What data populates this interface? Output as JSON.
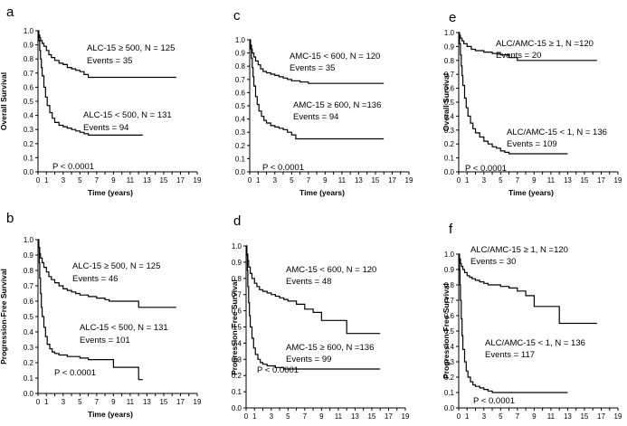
{
  "chart_data": [
    {
      "type": "line",
      "panel_letter": "a",
      "ylabel": "Overall Survival",
      "xlabel": "Time (years)",
      "xlim": [
        0,
        19
      ],
      "ylim": [
        0,
        1
      ],
      "xticks": [
        "0",
        "1",
        "3",
        "5",
        "7",
        "9",
        "11",
        "13",
        "15",
        "17",
        "19"
      ],
      "yticks": [
        "0.0",
        "0.1",
        "0.2",
        "0.3",
        "0.4",
        "0.5",
        "0.6",
        "0.7",
        "0.8",
        "0.9",
        "1.0"
      ],
      "pvalue": "P < 0.0001",
      "annotations": [
        {
          "line1": "ALC-15 ≥ 500, N = 125",
          "line2": "Events = 35"
        },
        {
          "line1": "ALC-15 < 500, N = 131",
          "line2": "Events = 94"
        }
      ],
      "series": [
        {
          "x": [
            0,
            0.1,
            0.2,
            0.3,
            0.5,
            0.7,
            1,
            1.3,
            1.6,
            2,
            2.5,
            3,
            3.5,
            4,
            4.5,
            5,
            5.5,
            6,
            6.5,
            7,
            9,
            16.5
          ],
          "y": [
            1,
            0.97,
            0.95,
            0.93,
            0.91,
            0.89,
            0.86,
            0.83,
            0.81,
            0.79,
            0.77,
            0.76,
            0.74,
            0.73,
            0.72,
            0.71,
            0.69,
            0.67,
            0.67,
            0.67,
            0.67,
            0.67
          ]
        },
        {
          "x": [
            0,
            0.1,
            0.2,
            0.3,
            0.4,
            0.5,
            0.7,
            0.9,
            1.1,
            1.4,
            1.7,
            2,
            2.5,
            3,
            3.5,
            4,
            4.5,
            5,
            5.5,
            6,
            6.5,
            9,
            10,
            11,
            12.5
          ],
          "y": [
            1,
            0.93,
            0.86,
            0.8,
            0.74,
            0.68,
            0.6,
            0.53,
            0.47,
            0.42,
            0.38,
            0.35,
            0.33,
            0.32,
            0.31,
            0.3,
            0.29,
            0.28,
            0.27,
            0.26,
            0.26,
            0.26,
            0.26,
            0.26,
            0.26
          ]
        }
      ]
    },
    {
      "type": "line",
      "panel_letter": "b",
      "ylabel": "Progression-Free Survival",
      "xlabel": "Time (years)",
      "xlim": [
        0,
        19
      ],
      "ylim": [
        0,
        1
      ],
      "xticks": [
        "0",
        "1",
        "3",
        "5",
        "7",
        "9",
        "11",
        "13",
        "15",
        "17",
        "19"
      ],
      "yticks": [
        "0.0",
        "0.1",
        "0.2",
        "0.3",
        "0.4",
        "0.5",
        "0.6",
        "0.7",
        "0.8",
        "0.9",
        "1.0"
      ],
      "pvalue": "P < 0.0001",
      "annotations": [
        {
          "line1": "ALC-15 ≥ 500, N = 125",
          "line2": "Events = 46"
        },
        {
          "line1": "ALC-15 < 500, N = 131",
          "line2": "Events = 101"
        }
      ],
      "series": [
        {
          "x": [
            0,
            0.1,
            0.2,
            0.3,
            0.5,
            0.7,
            1,
            1.3,
            1.6,
            2,
            2.5,
            3,
            3.5,
            4,
            4.5,
            5,
            6,
            7,
            8,
            8.5,
            9,
            12,
            16.5
          ],
          "y": [
            1,
            0.95,
            0.91,
            0.88,
            0.85,
            0.82,
            0.79,
            0.76,
            0.74,
            0.72,
            0.7,
            0.68,
            0.67,
            0.66,
            0.65,
            0.64,
            0.63,
            0.62,
            0.61,
            0.6,
            0.6,
            0.56,
            0.56
          ]
        },
        {
          "x": [
            0,
            0.1,
            0.15,
            0.2,
            0.3,
            0.4,
            0.5,
            0.7,
            0.9,
            1.1,
            1.4,
            1.7,
            2,
            2.5,
            3,
            3.5,
            4,
            5,
            6,
            7,
            8,
            9,
            10,
            11,
            12,
            12.5
          ],
          "y": [
            1,
            0.95,
            0.85,
            0.75,
            0.65,
            0.56,
            0.5,
            0.43,
            0.37,
            0.32,
            0.29,
            0.27,
            0.26,
            0.25,
            0.25,
            0.24,
            0.24,
            0.23,
            0.22,
            0.22,
            0.22,
            0.17,
            0.17,
            0.17,
            0.09,
            0.09
          ]
        }
      ]
    },
    {
      "type": "line",
      "panel_letter": "c",
      "ylabel": "",
      "xlabel": "Time (years)",
      "xlim": [
        0,
        19
      ],
      "ylim": [
        0,
        1
      ],
      "xticks": [
        "0",
        "1",
        "3",
        "5",
        "7",
        "9",
        "11",
        "13",
        "15",
        "17",
        "19"
      ],
      "yticks": [
        "0.0",
        "0.1",
        "0.2",
        "0.3",
        "0.4",
        "0.5",
        "0.6",
        "0.7",
        "0.8",
        "0.9",
        "1.0"
      ],
      "pvalue": "P < 0.0001",
      "annotations": [
        {
          "line1": "AMC-15 < 600, N = 120",
          "line2": "Events = 35"
        },
        {
          "line1": "AMC-15 ≥ 600, N =136",
          "line2": "Events = 94"
        }
      ],
      "series": [
        {
          "x": [
            0,
            0.1,
            0.2,
            0.3,
            0.5,
            0.7,
            1,
            1.3,
            1.6,
            2,
            2.5,
            3,
            3.5,
            4,
            4.5,
            5,
            6,
            7,
            9,
            16
          ],
          "y": [
            1,
            0.96,
            0.93,
            0.9,
            0.87,
            0.84,
            0.81,
            0.78,
            0.76,
            0.75,
            0.74,
            0.73,
            0.72,
            0.71,
            0.7,
            0.69,
            0.68,
            0.67,
            0.67,
            0.67
          ]
        },
        {
          "x": [
            0,
            0.1,
            0.2,
            0.3,
            0.4,
            0.5,
            0.7,
            0.9,
            1.1,
            1.4,
            1.7,
            2,
            2.5,
            3,
            3.5,
            4,
            4.5,
            5,
            5.5,
            6,
            9,
            16
          ],
          "y": [
            1,
            0.93,
            0.86,
            0.79,
            0.72,
            0.65,
            0.57,
            0.51,
            0.46,
            0.42,
            0.39,
            0.37,
            0.35,
            0.34,
            0.33,
            0.32,
            0.3,
            0.28,
            0.25,
            0.25,
            0.25,
            0.25
          ]
        }
      ]
    },
    {
      "type": "line",
      "panel_letter": "d",
      "ylabel": "Progression-Free Survival",
      "xlabel": "Time (years)",
      "xlim": [
        0,
        19
      ],
      "ylim": [
        0,
        1
      ],
      "xticks": [
        "0",
        "1",
        "3",
        "5",
        "7",
        "9",
        "11",
        "13",
        "15",
        "17",
        "19"
      ],
      "yticks": [
        "0.0",
        "0.1",
        "0.2",
        "0.3",
        "0.4",
        "0.5",
        "0.6",
        "0.7",
        "0.8",
        "0.9",
        "1.0"
      ],
      "pvalue": "P < 0.0001",
      "annotations": [
        {
          "line1": "AMC-15 < 600, N = 120",
          "line2": "Events = 48"
        },
        {
          "line1": "AMC-15 ≥ 600, N =136",
          "line2": "Events = 99"
        }
      ],
      "series": [
        {
          "x": [
            0,
            0.1,
            0.2,
            0.3,
            0.5,
            0.7,
            1,
            1.3,
            1.6,
            2,
            2.5,
            3,
            3.5,
            4,
            4.5,
            5,
            6,
            7,
            8,
            9,
            10,
            11,
            12,
            16
          ],
          "y": [
            1,
            0.95,
            0.91,
            0.87,
            0.83,
            0.8,
            0.77,
            0.75,
            0.73,
            0.72,
            0.71,
            0.7,
            0.69,
            0.68,
            0.67,
            0.66,
            0.64,
            0.61,
            0.59,
            0.54,
            0.54,
            0.54,
            0.46,
            0.46
          ]
        },
        {
          "x": [
            0,
            0.1,
            0.15,
            0.2,
            0.3,
            0.4,
            0.5,
            0.7,
            0.9,
            1.1,
            1.4,
            1.7,
            2,
            2.5,
            3,
            3.5,
            4,
            4.5,
            5,
            6,
            9,
            16
          ],
          "y": [
            1,
            0.94,
            0.85,
            0.75,
            0.65,
            0.57,
            0.5,
            0.43,
            0.37,
            0.33,
            0.3,
            0.28,
            0.27,
            0.26,
            0.26,
            0.25,
            0.25,
            0.24,
            0.24,
            0.24,
            0.24,
            0.24
          ]
        }
      ]
    },
    {
      "type": "line",
      "panel_letter": "e",
      "ylabel": "Overall Survival",
      "xlabel": "Time (years)",
      "xlim": [
        0,
        19
      ],
      "ylim": [
        0,
        1
      ],
      "xticks": [
        "0",
        "1",
        "3",
        "5",
        "7",
        "9",
        "11",
        "13",
        "15",
        "17",
        "19"
      ],
      "yticks": [
        "0.0",
        "0.1",
        "0.2",
        "0.3",
        "0.4",
        "0.5",
        "0.6",
        "0.7",
        "0.8",
        "0.9",
        "1.0"
      ],
      "pvalue": "P < 0.0001",
      "annotations": [
        {
          "line1": "ALC/AMC-15 ≥ 1, N =120",
          "line2": "Events = 20"
        },
        {
          "line1": "ALC/AMC-15 < 1, N = 136",
          "line2": "Events = 109"
        }
      ],
      "series": [
        {
          "x": [
            0,
            0.1,
            0.2,
            0.4,
            0.6,
            1,
            1.5,
            2,
            3,
            4,
            5,
            6,
            7,
            9,
            16.5
          ],
          "y": [
            1,
            0.98,
            0.96,
            0.94,
            0.92,
            0.9,
            0.88,
            0.87,
            0.86,
            0.85,
            0.84,
            0.82,
            0.8,
            0.8,
            0.8
          ]
        },
        {
          "x": [
            0,
            0.1,
            0.2,
            0.3,
            0.4,
            0.5,
            0.7,
            0.9,
            1.1,
            1.4,
            1.7,
            2,
            2.5,
            3,
            3.5,
            4,
            4.5,
            5,
            5.5,
            6,
            9,
            13
          ],
          "y": [
            1,
            0.92,
            0.84,
            0.76,
            0.69,
            0.62,
            0.53,
            0.46,
            0.4,
            0.35,
            0.31,
            0.28,
            0.25,
            0.22,
            0.2,
            0.18,
            0.17,
            0.15,
            0.14,
            0.13,
            0.13,
            0.13
          ]
        }
      ]
    },
    {
      "type": "line",
      "panel_letter": "f",
      "ylabel": "Progression-Free Survival",
      "xlabel": "Time (years)",
      "xlim": [
        0,
        19
      ],
      "ylim": [
        0,
        1
      ],
      "xticks": [
        "0",
        "1",
        "3",
        "5",
        "7",
        "9",
        "11",
        "13",
        "15",
        "17",
        "19"
      ],
      "yticks": [
        "0.0",
        "0.1",
        "0.2",
        "0.3",
        "0.4",
        "0.5",
        "0.6",
        "0.7",
        "0.8",
        "0.9",
        "1.0"
      ],
      "pvalue": "P < 0.0001",
      "annotations": [
        {
          "line1": "ALC/AMC-15  ≥ 1, N =120",
          "line2": "Events = 30"
        },
        {
          "line1": "ALC/AMC-15 < 1, N = 136",
          "line2": "Events = 117"
        }
      ],
      "series": [
        {
          "x": [
            0,
            0.1,
            0.2,
            0.3,
            0.5,
            0.7,
            1,
            1.3,
            1.6,
            2,
            2.5,
            3,
            3.5,
            4,
            5,
            6,
            7,
            8,
            9,
            12,
            16.5
          ],
          "y": [
            1,
            0.97,
            0.94,
            0.92,
            0.9,
            0.88,
            0.86,
            0.85,
            0.84,
            0.83,
            0.82,
            0.81,
            0.8,
            0.8,
            0.79,
            0.78,
            0.76,
            0.73,
            0.66,
            0.55,
            0.55
          ]
        },
        {
          "x": [
            0,
            0.1,
            0.15,
            0.2,
            0.3,
            0.4,
            0.5,
            0.7,
            0.9,
            1.1,
            1.4,
            1.7,
            2,
            2.5,
            3,
            3.5,
            4,
            5,
            6,
            9,
            13
          ],
          "y": [
            1,
            0.9,
            0.8,
            0.7,
            0.58,
            0.47,
            0.38,
            0.3,
            0.24,
            0.2,
            0.17,
            0.15,
            0.14,
            0.13,
            0.12,
            0.11,
            0.1,
            0.1,
            0.1,
            0.1,
            0.1
          ]
        }
      ]
    }
  ]
}
